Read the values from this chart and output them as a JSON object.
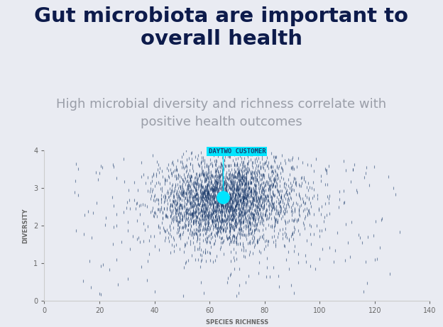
{
  "title": "Gut microbiota are important to\noverall health",
  "subtitle": "High microbial diversity and richness correlate with\npositive health outcomes",
  "xlabel": "SPECIES RICHNESS",
  "ylabel": "DIVERSITY",
  "xlim": [
    0,
    140
  ],
  "ylim": [
    0,
    4
  ],
  "xticks": [
    0,
    20,
    40,
    60,
    80,
    100,
    120,
    140
  ],
  "yticks": [
    0,
    1,
    2,
    3,
    4
  ],
  "bg_color": "#e9ebf2",
  "plot_bg_color": "#e9ebf2",
  "dot_color": "#1a3a6b",
  "highlight_color": "#00e5ff",
  "highlight_x": 65,
  "highlight_y": 2.75,
  "annotation_text": "DAYTWO CUSTOMER",
  "annotation_bg": "#00e5ff",
  "annotation_text_color": "#1a3a6b",
  "title_color": "#0d1b4b",
  "subtitle_color": "#9a9ea8",
  "title_fontsize": 21,
  "subtitle_fontsize": 13,
  "axis_label_fontsize": 6,
  "tick_fontsize": 7,
  "seed": 42,
  "n_core": 3000,
  "n_scatter": 400
}
